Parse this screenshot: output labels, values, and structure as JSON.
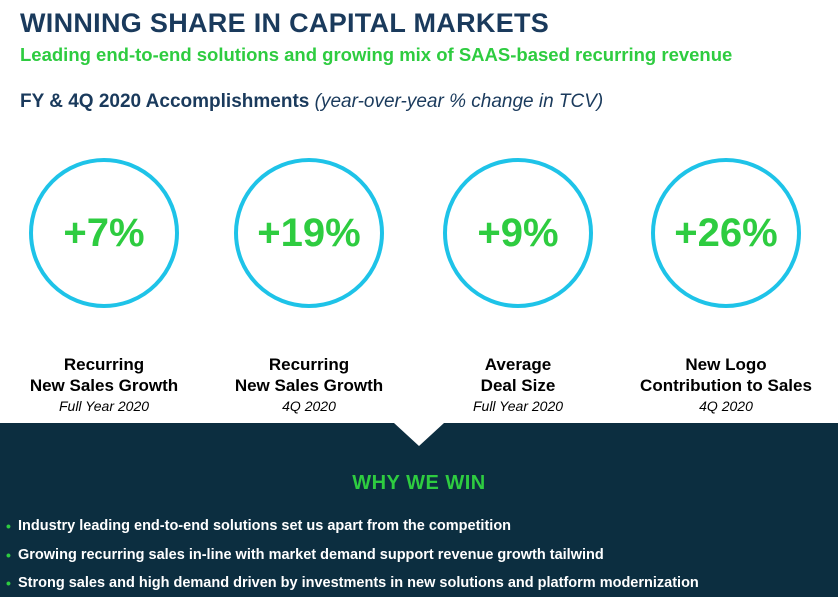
{
  "header": {
    "title": "WINNING SHARE IN CAPITAL MARKETS",
    "subtitle": "Leading end-to-end solutions and growing mix of SAAS-based recurring revenue"
  },
  "section": {
    "title": "FY & 4Q 2020 Accomplishments",
    "note": "(year-over-year % change in TCV)"
  },
  "metrics": [
    {
      "value": "+7%",
      "label_line1": "Recurring",
      "label_line2": "New Sales Growth",
      "period": "Full Year 2020"
    },
    {
      "value": "+19%",
      "label_line1": "Recurring",
      "label_line2": "New Sales Growth",
      "period": "4Q 2020"
    },
    {
      "value": "+9%",
      "label_line1": "Average",
      "label_line2": "Deal Size",
      "period": "Full Year 2020"
    },
    {
      "value": "+26%",
      "label_line1": "New Logo",
      "label_line2": "Contribution to Sales",
      "period": "4Q 2020"
    }
  ],
  "why_we_win": {
    "title": "WHY WE WIN",
    "bullets": [
      "Industry leading end-to-end solutions set us apart from the competition",
      "Growing recurring sales in-line with market demand support revenue growth tailwind",
      "Strong sales and high demand driven by investments in new solutions and platform modernization"
    ]
  },
  "colors": {
    "navy": "#1a3a5c",
    "green": "#2ecc40",
    "cyan": "#1ec3e8",
    "band": "#0c2e40"
  }
}
